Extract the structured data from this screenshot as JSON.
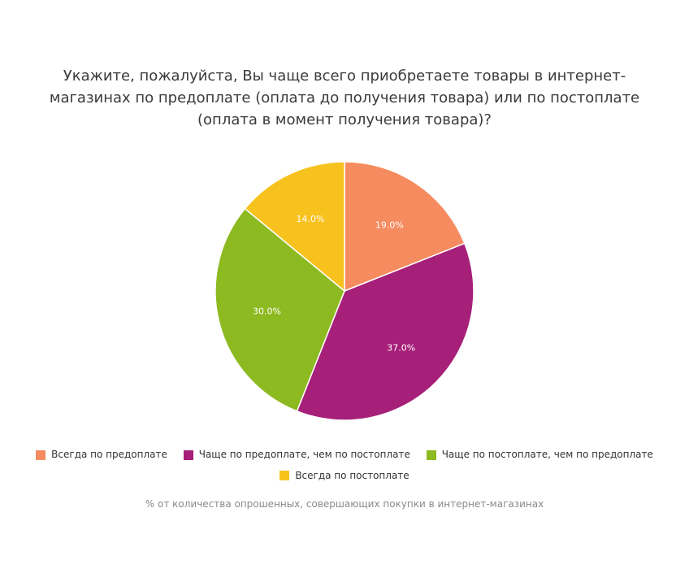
{
  "chart_data": {
    "type": "pie",
    "title": "Укажите, пожалуйста, Вы чаще всего приобретаете товары в интернет-магазинах по предоплате (оплата до получения товара) или по постоплате (оплата в момент получения товара)?",
    "slices": [
      {
        "label": "Всегда по предоплате",
        "value": 19.0,
        "value_label": "19.0%",
        "color": "#F58B5E"
      },
      {
        "label": "Чаще по предоплате, чем по постоплате",
        "value": 37.0,
        "value_label": "37.0%",
        "color": "#A61F78"
      },
      {
        "label": "Чаще по постоплате, чем по предоплате",
        "value": 30.0,
        "value_label": "30.0%",
        "color": "#8DB921"
      },
      {
        "label": "Всегда по постоплате",
        "value": 14.0,
        "value_label": "14.0%",
        "color": "#F8C21E"
      }
    ],
    "legend_position": "bottom",
    "footnote": "% от количества опрошенных, совершающих покупки в интернет-магазинах"
  }
}
